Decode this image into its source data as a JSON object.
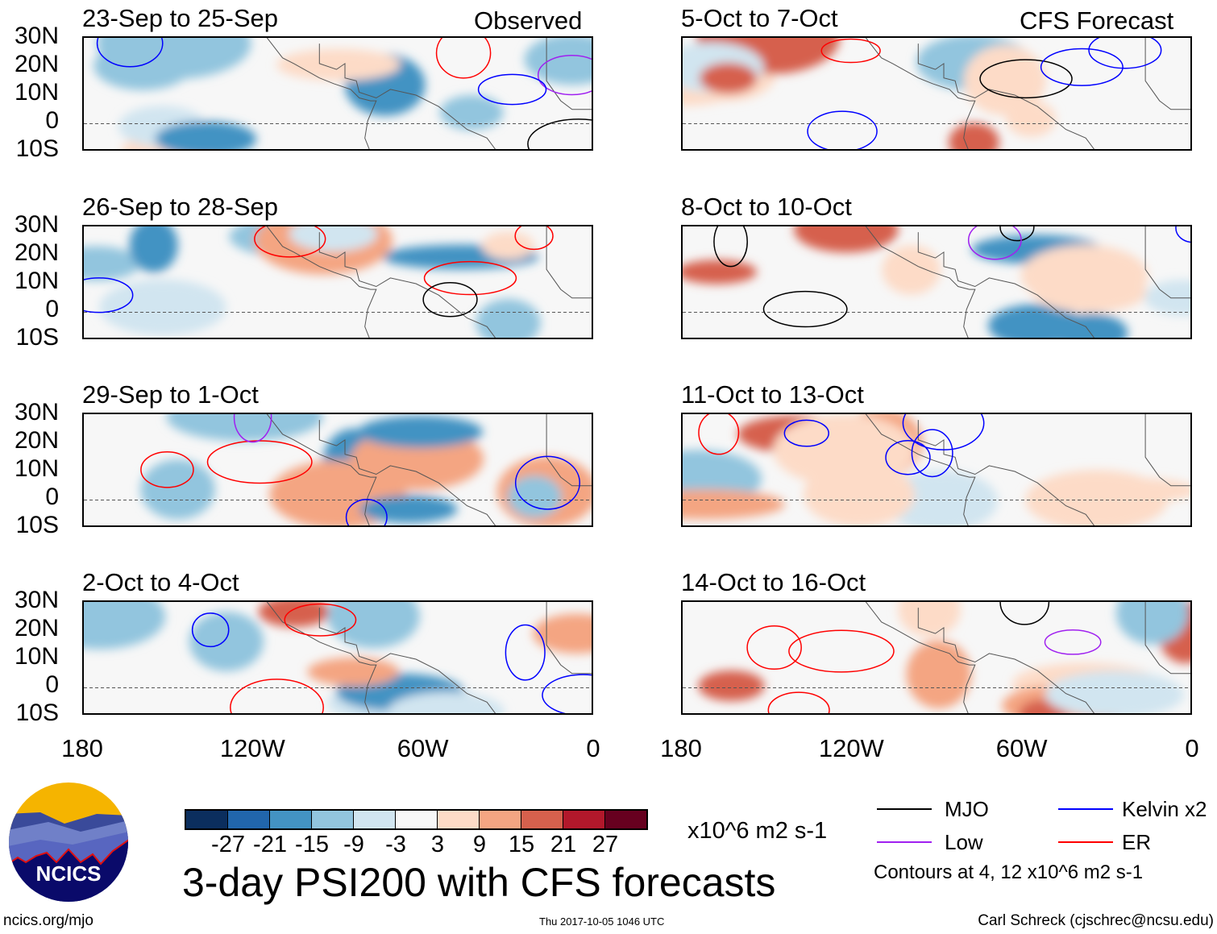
{
  "header": {
    "observed_label": "Observed",
    "forecast_label": "CFS Forecast"
  },
  "panels": {
    "observed": [
      "23-Sep to 25-Sep",
      "26-Sep to 28-Sep",
      "29-Sep to 1-Oct",
      "2-Oct to 4-Oct"
    ],
    "forecast": [
      "5-Oct to 7-Oct",
      "8-Oct to 10-Oct",
      "11-Oct to 13-Oct",
      "14-Oct to 16-Oct"
    ]
  },
  "axes": {
    "lat_labels": [
      "30N",
      "20N",
      "10N",
      "0",
      "10S"
    ],
    "lon_labels": [
      "180",
      "120W",
      "60W",
      "0"
    ]
  },
  "colorbar": {
    "colors": [
      "#0b2e5e",
      "#2166ac",
      "#4393c3",
      "#92c5de",
      "#d1e5f0",
      "#f7f7f7",
      "#fddbc7",
      "#f4a582",
      "#d6604d",
      "#b2182b",
      "#67001f"
    ],
    "ticks": [
      "-27",
      "-21",
      "-15",
      "-9",
      "-3",
      "3",
      "9",
      "15",
      "21",
      "27"
    ],
    "units": "x10^6 m2 s-1"
  },
  "title": "3-day PSI200 with CFS forecasts",
  "timestamp": "Thu 2017-10-05 1046 UTC",
  "legend": {
    "items": [
      {
        "label": "MJO",
        "color": "#000000"
      },
      {
        "label": "Kelvin x2",
        "color": "#0000ff"
      },
      {
        "label": "Low",
        "color": "#a020f0"
      },
      {
        "label": "ER",
        "color": "#ff0000"
      }
    ],
    "contours_note": "Contours at 4, 12 x10^6 m2 s-1"
  },
  "logo": {
    "text": "NCICS"
  },
  "footer": {
    "url": "ncics.org/mjo",
    "credit": "Carl Schreck (cjschrec@ncsu.edu)"
  }
}
